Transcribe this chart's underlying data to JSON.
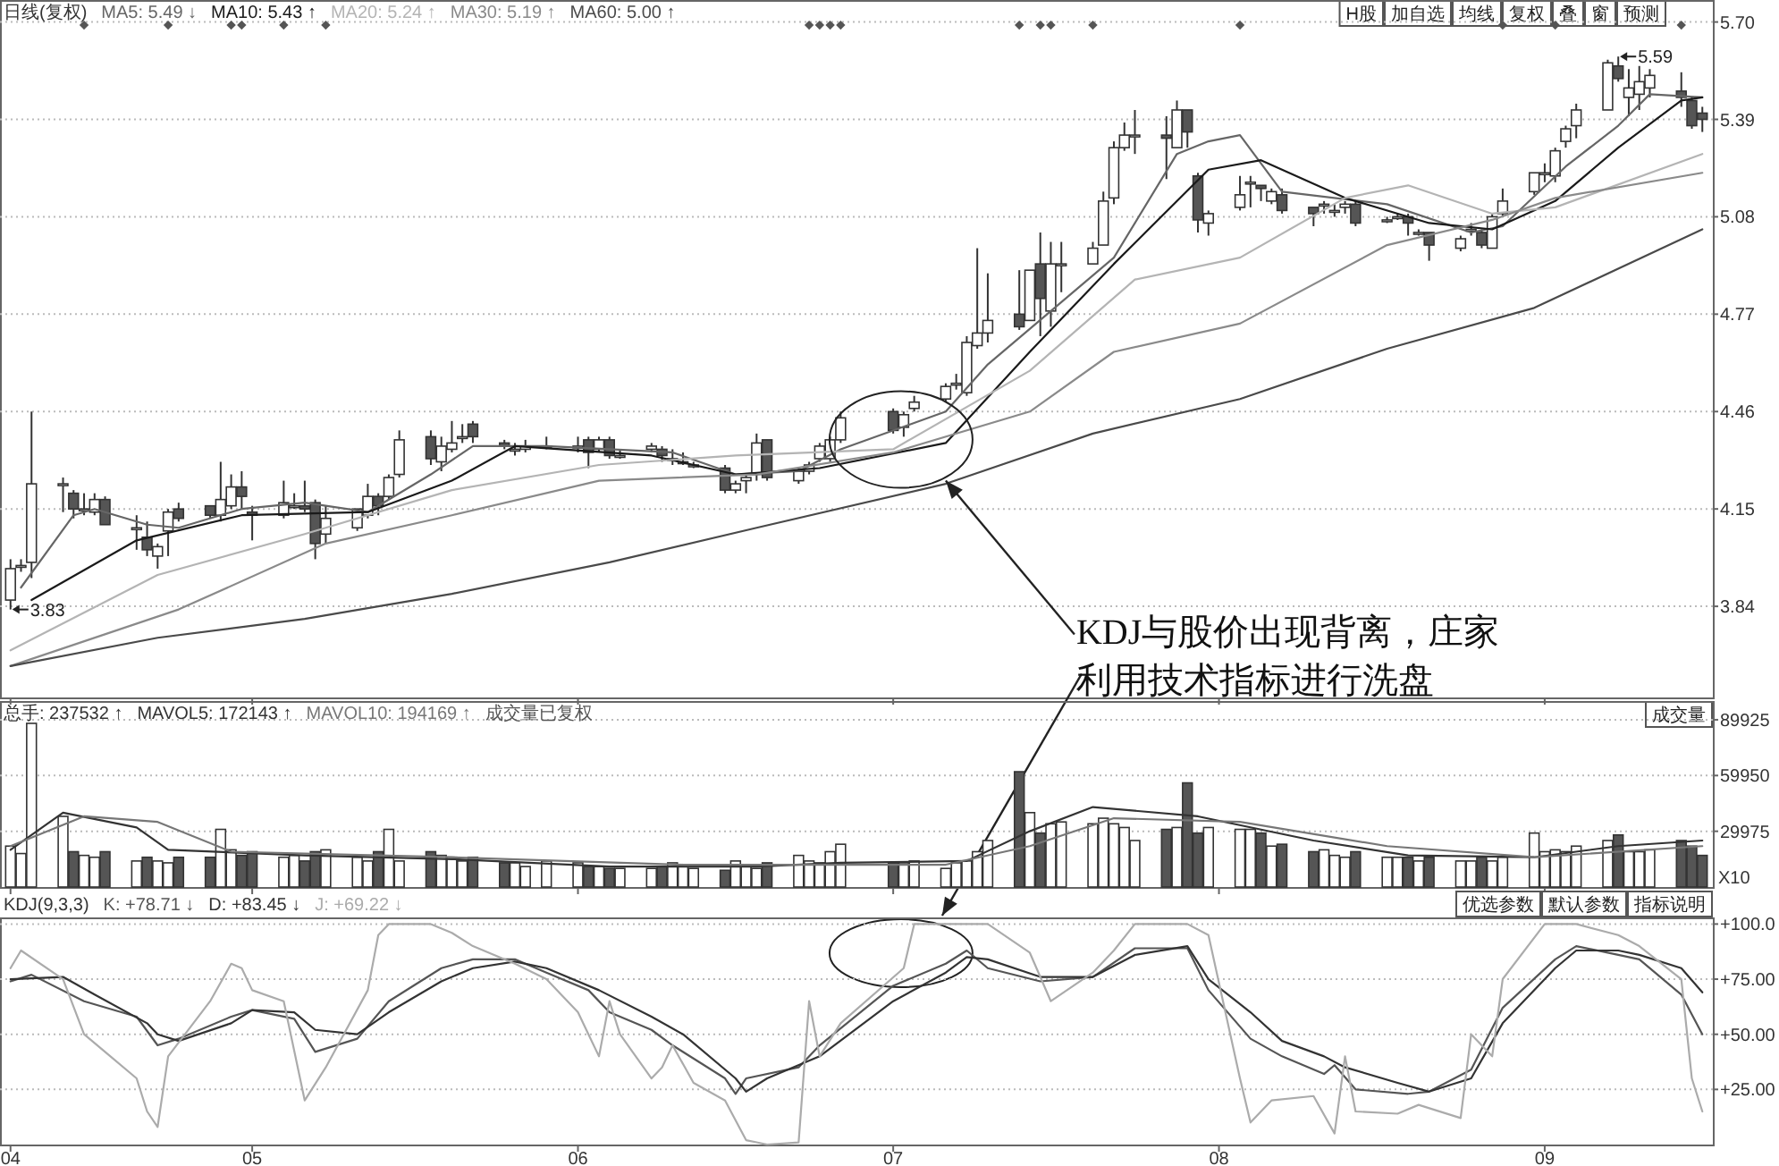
{
  "chart_data": [
    {
      "type": "candlestick",
      "title": "日线(复权)",
      "legend": "top left",
      "grid": "y",
      "tick_labels": "y",
      "xlim": [
        "--04-07",
        "--09-17"
      ],
      "xticks": [
        {
          "value": "--04-08",
          "label": null
        },
        {
          "value": "--05-01",
          "label": null
        },
        {
          "value": "--06-01",
          "label": null
        },
        {
          "value": "--07-01",
          "label": null
        },
        {
          "value": "--08-01",
          "label": null
        },
        {
          "value": "--09-01",
          "label": null
        }
      ],
      "ylim": [
        3.55,
        5.77
      ],
      "yticks": [
        3.84,
        4.15,
        4.46,
        4.77,
        5.08,
        5.39,
        {
          "value": 5.7,
          "label": "5.70"
        }
      ],
      "x": [
        "--04-08",
        "--04-09",
        "--04-10",
        "--04-13",
        "--04-14",
        "--04-15",
        "--04-16",
        "--04-17",
        "--04-20",
        "--04-21",
        "--04-22",
        "--04-23",
        "--04-24",
        "--04-27",
        "--04-28",
        "--04-29",
        "--04-30",
        "--05-01",
        "--05-04",
        "--05-05",
        "--05-06",
        "--05-07",
        "--05-08",
        "--05-11",
        "--05-12",
        "--05-13",
        "--05-14",
        "--05-15",
        "--05-18",
        "--05-19",
        "--05-20",
        "--05-21",
        "--05-22",
        "--05-25",
        "--05-26",
        "--05-27",
        "--05-29",
        "--06-01",
        "--06-02",
        "--06-03",
        "--06-04",
        "--06-05",
        "--06-08",
        "--06-09",
        "--06-10",
        "--06-11",
        "--06-12",
        "--06-15",
        "--06-16",
        "--06-17",
        "--06-18",
        "--06-19",
        "--06-22",
        "--06-23",
        "--06-24",
        "--06-25",
        "--06-26",
        "--07-01",
        "--07-02",
        "--07-03",
        "--07-06",
        "--07-07",
        "--07-08",
        "--07-09",
        "--07-10",
        "--07-13",
        "--07-14",
        "--07-15",
        "--07-16",
        "--07-17",
        "--07-20",
        "--07-21",
        "--07-22",
        "--07-23",
        "--07-24",
        "--07-27",
        "--07-28",
        "--07-29",
        "--07-30",
        "--07-31",
        "--08-03",
        "--08-04",
        "--08-05",
        "--08-06",
        "--08-07",
        "--08-10",
        "--08-11",
        "--08-12",
        "--08-13",
        "--08-14",
        "--08-17",
        "--08-18",
        "--08-19",
        "--08-20",
        "--08-21",
        "--08-24",
        "--08-25",
        "--08-26",
        "--08-27",
        "--08-28",
        "--08-31",
        "--09-01",
        "--09-02",
        "--09-03",
        "--09-04",
        "--09-07",
        "--09-08",
        "--09-09",
        "--09-10",
        "--09-11",
        "--09-14",
        "--09-15",
        "--09-16"
      ],
      "ohlc": [
        [
          3.86,
          3.99,
          3.83,
          3.96
        ],
        [
          3.97,
          3.99,
          3.95,
          3.97
        ],
        [
          3.98,
          4.46,
          3.93,
          4.23
        ],
        [
          4.23,
          4.25,
          4.14,
          4.23
        ],
        [
          4.2,
          4.21,
          4.12,
          4.15
        ],
        [
          4.15,
          4.2,
          4.13,
          4.15
        ],
        [
          4.14,
          4.2,
          4.13,
          4.18
        ],
        [
          4.18,
          4.19,
          4.1,
          4.1
        ],
        [
          4.09,
          4.13,
          4.02,
          4.09
        ],
        [
          4.06,
          4.11,
          4.0,
          4.02
        ],
        [
          4.0,
          4.04,
          3.96,
          4.03
        ],
        [
          4.08,
          4.15,
          4.0,
          4.14
        ],
        [
          4.15,
          4.17,
          4.11,
          4.12
        ],
        [
          4.16,
          4.16,
          4.12,
          4.13
        ],
        [
          4.13,
          4.3,
          4.11,
          4.18
        ],
        [
          4.16,
          4.26,
          4.15,
          4.22
        ],
        [
          4.22,
          4.27,
          4.15,
          4.19
        ],
        [
          4.14,
          4.16,
          4.05,
          4.13
        ],
        [
          4.13,
          4.24,
          4.12,
          4.17
        ],
        [
          4.16,
          4.2,
          4.15,
          4.16
        ],
        [
          4.16,
          4.24,
          4.14,
          4.15
        ],
        [
          4.17,
          4.18,
          3.99,
          4.04
        ],
        [
          4.07,
          4.16,
          4.04,
          4.12
        ],
        [
          4.09,
          4.15,
          4.08,
          4.15
        ],
        [
          4.13,
          4.23,
          4.12,
          4.19
        ],
        [
          4.19,
          4.2,
          4.13,
          4.16
        ],
        [
          4.19,
          4.26,
          4.18,
          4.25
        ],
        [
          4.26,
          4.4,
          4.25,
          4.37
        ],
        [
          4.38,
          4.4,
          4.29,
          4.31
        ],
        [
          4.3,
          4.38,
          4.27,
          4.35
        ],
        [
          4.34,
          4.43,
          4.33,
          4.36
        ],
        [
          4.38,
          4.42,
          4.36,
          4.38
        ],
        [
          4.42,
          4.43,
          4.36,
          4.38
        ],
        [
          4.36,
          4.37,
          4.34,
          4.35
        ],
        [
          4.34,
          4.36,
          4.32,
          4.34
        ],
        [
          4.34,
          4.37,
          4.33,
          4.35
        ],
        [
          4.35,
          4.38,
          4.34,
          4.35
        ],
        [
          4.35,
          4.38,
          4.33,
          4.35
        ],
        [
          4.37,
          4.38,
          4.28,
          4.33
        ],
        [
          4.34,
          4.38,
          4.33,
          4.37
        ],
        [
          4.37,
          4.38,
          4.31,
          4.32
        ],
        [
          4.32,
          4.34,
          4.31,
          4.32
        ],
        [
          4.34,
          4.36,
          4.33,
          4.35
        ],
        [
          4.34,
          4.35,
          4.3,
          4.32
        ],
        [
          4.31,
          4.34,
          4.29,
          4.31
        ],
        [
          4.3,
          4.33,
          4.29,
          4.3
        ],
        [
          4.29,
          4.3,
          4.28,
          4.29
        ],
        [
          4.28,
          4.29,
          4.2,
          4.21
        ],
        [
          4.21,
          4.24,
          4.2,
          4.23
        ],
        [
          4.24,
          4.26,
          4.2,
          4.25
        ],
        [
          4.26,
          4.39,
          4.24,
          4.36
        ],
        [
          4.37,
          4.37,
          4.24,
          4.25
        ],
        [
          4.24,
          4.28,
          4.23,
          4.27
        ],
        [
          4.27,
          4.3,
          4.26,
          4.29
        ],
        [
          4.31,
          4.36,
          4.3,
          4.35
        ],
        [
          4.31,
          4.38,
          4.3,
          4.37
        ],
        [
          4.37,
          4.46,
          4.36,
          4.44
        ],
        [
          4.46,
          4.47,
          4.39,
          4.4
        ],
        [
          4.41,
          4.46,
          4.38,
          4.45
        ],
        [
          4.47,
          4.51,
          4.46,
          4.49
        ],
        [
          4.5,
          4.55,
          4.49,
          4.54
        ],
        [
          4.55,
          4.58,
          4.53,
          4.55
        ],
        [
          4.52,
          4.7,
          4.51,
          4.68
        ],
        [
          4.67,
          4.98,
          4.66,
          4.71
        ],
        [
          4.71,
          4.9,
          4.68,
          4.75
        ],
        [
          4.77,
          4.91,
          4.72,
          4.73
        ],
        [
          4.75,
          4.91,
          4.75,
          4.91
        ],
        [
          4.93,
          5.03,
          4.7,
          4.82
        ],
        [
          4.78,
          5.0,
          4.73,
          4.93
        ],
        [
          4.93,
          5.0,
          4.84,
          4.93
        ],
        [
          4.93,
          5.0,
          4.93,
          4.98
        ],
        [
          4.99,
          5.16,
          4.99,
          5.13
        ],
        [
          5.14,
          5.32,
          5.12,
          5.3
        ],
        [
          5.3,
          5.38,
          5.29,
          5.34
        ],
        [
          5.34,
          5.42,
          5.28,
          5.34
        ],
        [
          5.34,
          5.4,
          5.2,
          5.33
        ],
        [
          5.3,
          5.45,
          5.3,
          5.42
        ],
        [
          5.42,
          5.42,
          5.3,
          5.35
        ],
        [
          5.21,
          5.22,
          5.03,
          5.07
        ],
        [
          5.06,
          5.1,
          5.02,
          5.09
        ],
        [
          5.11,
          5.21,
          5.1,
          5.15
        ],
        [
          5.19,
          5.21,
          5.11,
          5.19
        ],
        [
          5.18,
          5.18,
          5.13,
          5.17
        ],
        [
          5.13,
          5.17,
          5.12,
          5.16
        ],
        [
          5.15,
          5.17,
          5.09,
          5.1
        ],
        [
          5.11,
          5.11,
          5.05,
          5.09
        ],
        [
          5.12,
          5.13,
          5.09,
          5.12
        ],
        [
          5.1,
          5.12,
          5.08,
          5.1
        ],
        [
          5.11,
          5.13,
          5.09,
          5.12
        ],
        [
          5.12,
          5.13,
          5.05,
          5.06
        ],
        [
          5.07,
          5.08,
          5.06,
          5.07
        ],
        [
          5.08,
          5.09,
          5.07,
          5.08
        ],
        [
          5.08,
          5.09,
          5.02,
          5.06
        ],
        [
          5.03,
          5.04,
          5.02,
          5.03
        ],
        [
          5.03,
          5.03,
          4.94,
          4.99
        ],
        [
          4.98,
          5.02,
          4.97,
          5.01
        ],
        [
          5.04,
          5.06,
          5.02,
          5.04
        ],
        [
          5.03,
          5.04,
          4.98,
          4.99
        ],
        [
          4.98,
          5.09,
          4.98,
          5.08
        ],
        [
          5.09,
          5.17,
          5.08,
          5.13
        ],
        [
          5.16,
          5.22,
          5.15,
          5.22
        ],
        [
          5.22,
          5.25,
          5.19,
          5.22
        ],
        [
          5.21,
          5.3,
          5.19,
          5.29
        ],
        [
          5.32,
          5.37,
          5.3,
          5.36
        ],
        [
          5.37,
          5.44,
          5.33,
          5.42
        ],
        [
          5.42,
          5.58,
          5.42,
          5.57
        ],
        [
          5.56,
          5.59,
          5.51,
          5.52
        ],
        [
          5.46,
          5.55,
          5.4,
          5.49
        ],
        [
          5.47,
          5.56,
          5.42,
          5.51
        ],
        [
          5.49,
          5.55,
          5.46,
          5.53
        ],
        [
          5.48,
          5.54,
          5.43,
          5.46
        ],
        [
          5.45,
          5.46,
          5.36,
          5.37
        ],
        [
          5.41,
          5.43,
          5.35,
          5.39
        ]
      ],
      "series": [
        {
          "name": "MA5: 5.49 ↓",
          "type": "line",
          "color": "#666666",
          "x": [
            "--04-09",
            "--04-14",
            "--04-16",
            "--04-21",
            "--04-24",
            "--04-30",
            "--05-06",
            "--05-12",
            "--05-18",
            "--05-22",
            "--05-29",
            "--06-10",
            "--06-16",
            "--06-22",
            "--06-26",
            "--07-06",
            "--07-10",
            "--07-16",
            "--07-22",
            "--07-28",
            "--07-31",
            "--08-03",
            "--08-07",
            "--08-17",
            "--08-25",
            "--08-28",
            "--09-03",
            "--09-08",
            "--09-11",
            "--09-16"
          ],
          "values": [
            3.9,
            4.13,
            4.15,
            4.1,
            4.09,
            4.15,
            4.17,
            4.14,
            4.26,
            4.35,
            4.35,
            4.33,
            4.26,
            4.27,
            4.34,
            4.46,
            4.61,
            4.78,
            4.95,
            5.28,
            5.32,
            5.34,
            5.16,
            5.12,
            5.03,
            5.05,
            5.24,
            5.37,
            5.47,
            5.46
          ]
        },
        {
          "name": "MA10: 5.43 ↑",
          "type": "line",
          "color": "#1a1a1a",
          "x": [
            "--04-10",
            "--04-20",
            "--04-30",
            "--05-12",
            "--05-20",
            "--05-26",
            "--06-08",
            "--06-16",
            "--06-24",
            "--07-06",
            "--07-14",
            "--07-22",
            "--07-31",
            "--08-05",
            "--08-13",
            "--08-21",
            "--08-27",
            "--09-02",
            "--09-08",
            "--09-14",
            "--09-16"
          ],
          "values": [
            3.86,
            4.05,
            4.13,
            4.14,
            4.24,
            4.35,
            4.32,
            4.26,
            4.28,
            4.36,
            4.65,
            4.93,
            5.23,
            5.26,
            5.14,
            5.06,
            5.04,
            5.13,
            5.3,
            5.45,
            5.46
          ]
        },
        {
          "name": "MA20: 5.24 ↑",
          "type": "line",
          "color": "#b4b4b4",
          "x": [
            "--04-08",
            "--04-22",
            "--05-06",
            "--05-20",
            "--06-03",
            "--06-16",
            "--07-01",
            "--07-14",
            "--07-24",
            "--08-03",
            "--08-13",
            "--08-19",
            "--08-27",
            "--09-02",
            "--09-16"
          ],
          "values": [
            3.7,
            3.94,
            4.07,
            4.21,
            4.29,
            4.32,
            4.34,
            4.59,
            4.88,
            4.95,
            5.14,
            5.18,
            5.09,
            5.11,
            5.28
          ]
        },
        {
          "name": "MA30: 5.19 ↑",
          "type": "line",
          "color": "#8a8a8a",
          "x": [
            "--04-08",
            "--04-24",
            "--05-08",
            "--05-20",
            "--06-03",
            "--06-18",
            "--07-01",
            "--07-14",
            "--07-22",
            "--08-03",
            "--08-17",
            "--08-27",
            "--09-02",
            "--09-16"
          ],
          "values": [
            3.65,
            3.83,
            4.04,
            4.13,
            4.24,
            4.26,
            4.33,
            4.46,
            4.65,
            4.74,
            4.99,
            5.07,
            5.14,
            5.22
          ]
        },
        {
          "name": "MA60: 5.00 ↑",
          "type": "line",
          "color": "#4a4a4a",
          "x": [
            "--04-08",
            "--04-22",
            "--05-06",
            "--05-20",
            "--06-04",
            "--06-18",
            "--07-06",
            "--07-20",
            "--08-03",
            "--08-17",
            "--08-31",
            "--09-16"
          ],
          "values": [
            3.65,
            3.74,
            3.8,
            3.88,
            3.98,
            4.09,
            4.23,
            4.39,
            4.5,
            4.66,
            4.79,
            5.04
          ]
        },
        {
          "type": "scatter",
          "marker": "diamond",
          "color": "#555555",
          "x": [
            "--04-15",
            "--04-23",
            "--04-29",
            "--04-30",
            "--05-04",
            "--05-08",
            "--06-23",
            "--06-24",
            "--06-25",
            "--06-26",
            "--07-13",
            "--07-15",
            "--07-16",
            "--07-20",
            "--08-03",
            "--08-28",
            "--09-02",
            "--09-14"
          ],
          "values": [
            5.69,
            5.69,
            5.69,
            5.69,
            5.69,
            5.69,
            5.69,
            5.69,
            5.69,
            5.69,
            5.69,
            5.69,
            5.69,
            5.69,
            5.69,
            5.69,
            5.69,
            5.69
          ]
        }
      ],
      "annotations": [
        {
          "text": "3.83",
          "x": "--04-08",
          "y": 3.83
        },
        {
          "text": "5.59",
          "x": "--09-08",
          "y": 5.59
        },
        {
          "text": "KDJ与股价出现背离，庄家利用技术指标进行洗盘",
          "x": "--07-06",
          "y": 4.24
        },
        "H股",
        "加自选",
        "均线",
        "复权",
        "叠",
        "窗",
        "预测"
      ]
    },
    {
      "type": "bar",
      "title": "总手: 237532 ↑",
      "legend": "top left",
      "grid": "y",
      "tick_labels": "y",
      "xlim": [
        "--04-07",
        "--09-17"
      ],
      "xticks": [
        {
          "value": "--04-08",
          "label": null
        },
        {
          "value": "--05-01",
          "label": null
        },
        {
          "value": "--06-01",
          "label": null
        },
        {
          "value": "--07-01",
          "label": null
        },
        {
          "value": "--08-01",
          "label": null
        },
        {
          "value": "--09-01",
          "label": null
        }
      ],
      "ylim": [
        0,
        100000
      ],
      "yticks": [
        29975,
        59950,
        89925
      ],
      "x": [
        "--04-08",
        "--04-09",
        "--04-10",
        "--04-13",
        "--04-14",
        "--04-15",
        "--04-16",
        "--04-17",
        "--04-20",
        "--04-21",
        "--04-22",
        "--04-23",
        "--04-24",
        "--04-27",
        "--04-28",
        "--04-29",
        "--04-30",
        "--05-01",
        "--05-04",
        "--05-05",
        "--05-06",
        "--05-07",
        "--05-08",
        "--05-11",
        "--05-12",
        "--05-13",
        "--05-14",
        "--05-15",
        "--05-18",
        "--05-19",
        "--05-20",
        "--05-21",
        "--05-22",
        "--05-25",
        "--05-26",
        "--05-27",
        "--05-29",
        "--06-01",
        "--06-02",
        "--06-03",
        "--06-04",
        "--06-05",
        "--06-08",
        "--06-09",
        "--06-10",
        "--06-11",
        "--06-12",
        "--06-15",
        "--06-16",
        "--06-17",
        "--06-18",
        "--06-19",
        "--06-22",
        "--06-23",
        "--06-24",
        "--06-25",
        "--06-26",
        "--07-01",
        "--07-02",
        "--07-03",
        "--07-06",
        "--07-07",
        "--07-08",
        "--07-09",
        "--07-10",
        "--07-13",
        "--07-14",
        "--07-15",
        "--07-16",
        "--07-17",
        "--07-20",
        "--07-21",
        "--07-22",
        "--07-23",
        "--07-24",
        "--07-27",
        "--07-28",
        "--07-29",
        "--07-30",
        "--07-31",
        "--08-03",
        "--08-04",
        "--08-05",
        "--08-06",
        "--08-07",
        "--08-10",
        "--08-11",
        "--08-12",
        "--08-13",
        "--08-14",
        "--08-17",
        "--08-18",
        "--08-19",
        "--08-20",
        "--08-21",
        "--08-24",
        "--08-25",
        "--08-26",
        "--08-27",
        "--08-28",
        "--08-31",
        "--09-01",
        "--09-02",
        "--09-03",
        "--09-04",
        "--09-07",
        "--09-08",
        "--09-09",
        "--09-10",
        "--09-11",
        "--09-14",
        "--09-15",
        "--09-16"
      ],
      "values": [
        22000,
        18000,
        88000,
        38000,
        19000,
        17000,
        16000,
        19000,
        14000,
        16000,
        14000,
        13000,
        16000,
        16000,
        31000,
        20000,
        17000,
        19000,
        16000,
        17000,
        14000,
        19000,
        20000,
        16000,
        14000,
        19000,
        31000,
        14000,
        19000,
        17000,
        16000,
        14000,
        16000,
        13000,
        13000,
        11000,
        14000,
        13000,
        11000,
        11000,
        10000,
        10000,
        10000,
        11000,
        13000,
        11000,
        10000,
        9000,
        14000,
        11000,
        10000,
        13000,
        17000,
        14000,
        13000,
        19000,
        23000,
        13000,
        13000,
        14000,
        10000,
        13000,
        14000,
        19000,
        25000,
        62000,
        40000,
        29000,
        34000,
        35000,
        34000,
        37000,
        34000,
        32000,
        25000,
        31000,
        32000,
        56000,
        29000,
        32000,
        31000,
        31000,
        29000,
        22000,
        23000,
        19000,
        20000,
        17000,
        16000,
        19000,
        16000,
        16000,
        16000,
        14000,
        16000,
        14000,
        14000,
        16000,
        14000,
        16000,
        29000,
        19000,
        20000,
        19000,
        22000,
        25000,
        28000,
        19000,
        19000,
        20000,
        25000,
        22000,
        17000
      ],
      "colors": [
        "#ffffff",
        "#ffffff",
        "#ffffff",
        "#ffffff",
        "#555555",
        "#ffffff",
        "#ffffff",
        "#555555",
        "#ffffff",
        "#555555",
        "#ffffff",
        "#ffffff",
        "#555555",
        "#555555",
        "#ffffff",
        "#ffffff",
        "#555555",
        "#555555",
        "#ffffff",
        "#ffffff",
        "#555555",
        "#555555",
        "#ffffff",
        "#ffffff",
        "#ffffff",
        "#555555",
        "#ffffff",
        "#ffffff",
        "#555555",
        "#ffffff",
        "#ffffff",
        "#ffffff",
        "#555555",
        "#555555",
        "#ffffff",
        "#ffffff",
        "#ffffff",
        "#ffffff",
        "#555555",
        "#ffffff",
        "#555555",
        "#ffffff",
        "#ffffff",
        "#555555",
        "#ffffff",
        "#ffffff",
        "#ffffff",
        "#555555",
        "#ffffff",
        "#ffffff",
        "#ffffff",
        "#555555",
        "#ffffff",
        "#ffffff",
        "#ffffff",
        "#ffffff",
        "#ffffff",
        "#555555",
        "#ffffff",
        "#ffffff",
        "#ffffff",
        "#ffffff",
        "#ffffff",
        "#ffffff",
        "#ffffff",
        "#555555",
        "#ffffff",
        "#555555",
        "#ffffff",
        "#ffffff",
        "#ffffff",
        "#ffffff",
        "#ffffff",
        "#ffffff",
        "#ffffff",
        "#555555",
        "#ffffff",
        "#555555",
        "#555555",
        "#ffffff",
        "#ffffff",
        "#ffffff",
        "#555555",
        "#ffffff",
        "#555555",
        "#555555",
        "#ffffff",
        "#ffffff",
        "#ffffff",
        "#555555",
        "#ffffff",
        "#ffffff",
        "#555555",
        "#ffffff",
        "#555555",
        "#ffffff",
        "#ffffff",
        "#555555",
        "#ffffff",
        "#ffffff",
        "#ffffff",
        "#ffffff",
        "#ffffff",
        "#ffffff",
        "#ffffff",
        "#ffffff",
        "#555555",
        "#ffffff",
        "#ffffff",
        "#ffffff",
        "#555555",
        "#555555",
        "#555555"
      ],
      "series": [
        {
          "name": "MAVOL5: 172143 ↑",
          "type": "line",
          "color": "#333333",
          "x": [
            "--04-08",
            "--04-13",
            "--04-20",
            "--04-23",
            "--05-06",
            "--05-20",
            "--06-04",
            "--06-18",
            "--06-26",
            "--07-08",
            "--07-14",
            "--07-20",
            "--07-30",
            "--08-10",
            "--08-19",
            "--08-31",
            "--09-08",
            "--09-16"
          ],
          "values": [
            20000,
            40000,
            32000,
            20000,
            17000,
            15000,
            11000,
            11000,
            13000,
            14000,
            30000,
            43000,
            38000,
            25000,
            17000,
            16000,
            22000,
            25000
          ]
        },
        {
          "name": "MAVOL10: 194169 ↑",
          "type": "line",
          "color": "#777777",
          "x": [
            "--04-08",
            "--04-15",
            "--04-22",
            "--04-29",
            "--05-20",
            "--06-11",
            "--07-06",
            "--07-14",
            "--07-22",
            "--08-03",
            "--08-17",
            "--08-31",
            "--09-16"
          ],
          "values": [
            22000,
            38000,
            35000,
            19000,
            16000,
            12000,
            12000,
            22000,
            37000,
            35000,
            22000,
            16000,
            22000
          ]
        }
      ],
      "annotations": [
        "成交量已复权",
        "成交量",
        "X10"
      ]
    },
    {
      "type": "line",
      "title": "KDJ(9,3,3)",
      "legend": "top left",
      "grid": "y",
      "xlim": [
        "--04-07",
        "--09-17"
      ],
      "xticks": [
        {
          "value": "--04-08",
          "label": "04"
        },
        {
          "value": "--05-01",
          "label": "05"
        },
        {
          "value": "--06-01",
          "label": "06"
        },
        {
          "value": "--07-01",
          "label": "07"
        },
        {
          "value": "--08-01",
          "label": "08"
        },
        {
          "value": "--09-01",
          "label": "09"
        }
      ],
      "ylim": [
        0,
        103
      ],
      "yticks": [
        {
          "value": 25,
          "label": "+25.00"
        },
        {
          "value": 50,
          "label": "+50.00"
        },
        {
          "value": 75,
          "label": "+75.00"
        },
        {
          "value": 100,
          "label": "+100.0"
        }
      ],
      "series": [
        {
          "name": "K: +78.71 ↓",
          "color": "#555555",
          "x": [
            "--04-08",
            "--04-10",
            "--04-15",
            "--04-20",
            "--04-22",
            "--04-24",
            "--04-29",
            "--05-01",
            "--05-05",
            "--05-07",
            "--05-11",
            "--05-14",
            "--05-19",
            "--05-22",
            "--05-26",
            "--05-29",
            "--06-02",
            "--06-04",
            "--06-08",
            "--06-10",
            "--06-15",
            "--06-16",
            "--06-17",
            "--06-22",
            "--06-24",
            "--07-01",
            "--07-06",
            "--07-08",
            "--07-10",
            "--07-15",
            "--07-20",
            "--07-24",
            "--07-29",
            "--07-31",
            "--08-04",
            "--08-07",
            "--08-11",
            "--08-12",
            "--08-14",
            "--08-19",
            "--08-21",
            "--08-25",
            "--08-28",
            "--09-02",
            "--09-04",
            "--09-08",
            "--09-10",
            "--09-14",
            "--09-16"
          ],
          "values": [
            74,
            77,
            65,
            58,
            45,
            48,
            58,
            61,
            57,
            42,
            48,
            65,
            80,
            84,
            84,
            78,
            70,
            60,
            52,
            45,
            30,
            23,
            30,
            35,
            45,
            72,
            82,
            88,
            80,
            74,
            76,
            89,
            89,
            70,
            48,
            40,
            32,
            36,
            25,
            23,
            24,
            34,
            62,
            84,
            90,
            86,
            84,
            68,
            50
          ]
        },
        {
          "name": "D: +83.45 ↓",
          "color": "#333333",
          "x": [
            "--04-08",
            "--04-13",
            "--04-16",
            "--04-21",
            "--04-22",
            "--04-24",
            "--04-29",
            "--05-01",
            "--05-05",
            "--05-07",
            "--05-11",
            "--05-14",
            "--05-19",
            "--05-22",
            "--05-26",
            "--05-29",
            "--06-03",
            "--06-08",
            "--06-11",
            "--06-16",
            "--06-17",
            "--06-19",
            "--06-24",
            "--07-01",
            "--07-06",
            "--07-08",
            "--07-10",
            "--07-15",
            "--07-20",
            "--07-24",
            "--07-29",
            "--07-31",
            "--08-04",
            "--08-07",
            "--08-11",
            "--08-13",
            "--08-18",
            "--08-21",
            "--08-25",
            "--08-28",
            "--09-02",
            "--09-04",
            "--09-08",
            "--09-10",
            "--09-14",
            "--09-16"
          ],
          "values": [
            75,
            76,
            68,
            55,
            50,
            47,
            55,
            61,
            60,
            52,
            50,
            60,
            74,
            80,
            83,
            80,
            70,
            58,
            50,
            30,
            24,
            30,
            40,
            65,
            78,
            85,
            84,
            76,
            76,
            86,
            90,
            75,
            60,
            47,
            40,
            35,
            28,
            24,
            30,
            55,
            80,
            88,
            88,
            86,
            80,
            69
          ]
        },
        {
          "name": "J: +69.22 ↓",
          "color": "#ababab",
          "x": [
            "--04-08",
            "--04-09",
            "--04-13",
            "--04-15",
            "--04-17",
            "--04-20",
            "--04-21",
            "--04-22",
            "--04-23",
            "--04-27",
            "--04-29",
            "--04-30",
            "--05-01",
            "--05-04",
            "--05-06",
            "--05-08",
            "--05-12",
            "--05-13",
            "--05-14",
            "--05-18",
            "--05-20",
            "--05-22",
            "--05-26",
            "--05-29",
            "--06-01",
            "--06-02",
            "--06-03",
            "--06-04",
            "--06-05",
            "--06-08",
            "--06-09",
            "--06-10",
            "--06-12",
            "--06-15",
            "--06-17",
            "--06-18",
            "--06-19",
            "--06-22",
            "--06-23",
            "--06-24",
            "--06-26",
            "--07-02",
            "--07-03",
            "--07-08",
            "--07-10",
            "--07-14",
            "--07-16",
            "--07-20",
            "--07-22",
            "--07-24",
            "--07-29",
            "--07-31",
            "--08-03",
            "--08-04",
            "--08-06",
            "--08-10",
            "--08-12",
            "--08-13",
            "--08-14",
            "--08-18",
            "--08-20",
            "--08-24",
            "--08-25",
            "--08-27",
            "--08-28",
            "--09-01",
            "--09-04",
            "--09-08",
            "--09-10",
            "--09-14",
            "--09-15",
            "--09-16"
          ],
          "values": [
            80,
            88,
            75,
            50,
            42,
            30,
            15,
            8,
            40,
            65,
            82,
            80,
            70,
            65,
            20,
            35,
            70,
            95,
            100,
            100,
            96,
            90,
            82,
            75,
            60,
            50,
            40,
            65,
            50,
            30,
            35,
            45,
            28,
            20,
            2,
            1,
            0,
            1,
            65,
            40,
            55,
            80,
            100,
            100,
            100,
            87,
            65,
            78,
            88,
            100,
            100,
            95,
            30,
            10,
            20,
            22,
            5,
            40,
            15,
            14,
            18,
            12,
            50,
            40,
            75,
            100,
            100,
            95,
            90,
            75,
            30,
            15
          ]
        }
      ],
      "annotations": [
        "优选参数",
        "默认参数",
        "指标说明"
      ]
    }
  ]
}
